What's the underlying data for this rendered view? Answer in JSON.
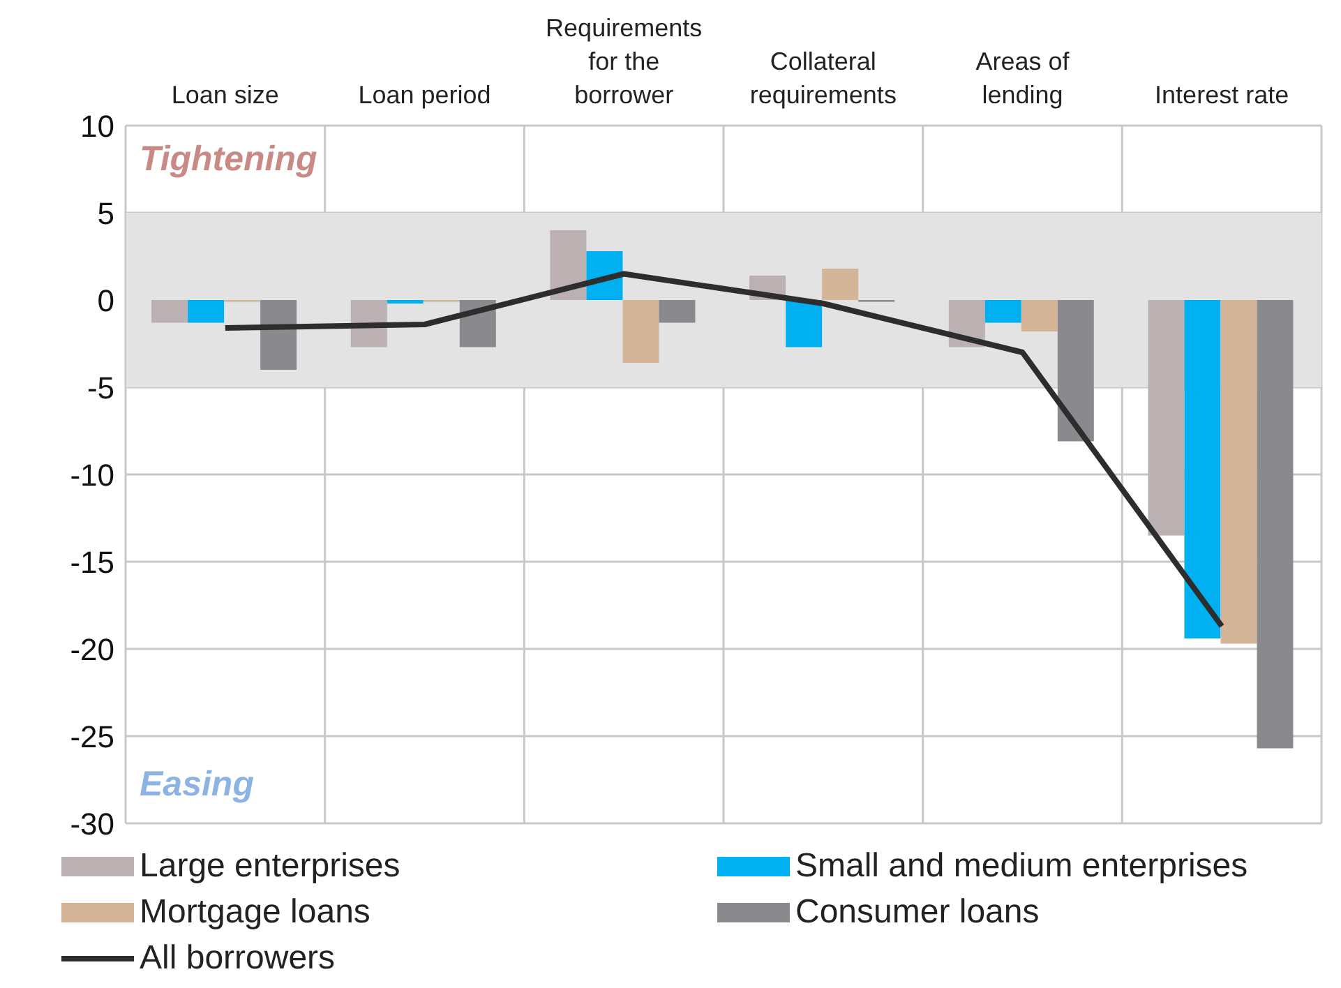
{
  "chart_data": {
    "type": "bar",
    "categories": [
      "Loan size",
      "Loan period",
      "Requirements for the borrower",
      "Collateral requirements",
      "Areas of lending",
      "Interest rate"
    ],
    "series": [
      {
        "name": "Large enterprises",
        "color": "#bbb0b2",
        "values": [
          -1.3,
          -2.7,
          4.0,
          1.4,
          -2.7,
          -13.5
        ]
      },
      {
        "name": "Small and medium enterprises",
        "color": "#00b0f0",
        "values": [
          -1.3,
          -0.2,
          2.8,
          -2.7,
          -1.3,
          -19.4
        ]
      },
      {
        "name": "Mortgage loans",
        "color": "#d4b598",
        "values": [
          -0.1,
          -0.1,
          -3.6,
          1.8,
          -1.8,
          -19.7
        ]
      },
      {
        "name": "Consumer loans",
        "color": "#8a898d",
        "values": [
          -4.0,
          -2.7,
          -1.3,
          -0.1,
          -8.1,
          -25.7
        ]
      },
      {
        "name": "All borrowers",
        "type": "line",
        "color": "#2d2d2d",
        "values": [
          -1.6,
          -1.4,
          1.5,
          -0.2,
          -3.0,
          -18.7
        ]
      }
    ],
    "ylim": [
      -30,
      10
    ],
    "yticks": [
      -30,
      -25,
      -20,
      -15,
      -10,
      -5,
      0,
      5,
      10
    ],
    "grid": true,
    "legend": "bottom",
    "marker": "none",
    "bands": [
      {
        "axis": "y",
        "from": -5,
        "to": 5,
        "color": "#e3e3e3"
      }
    ],
    "annotations": [
      "Tightening",
      "Easing"
    ]
  }
}
